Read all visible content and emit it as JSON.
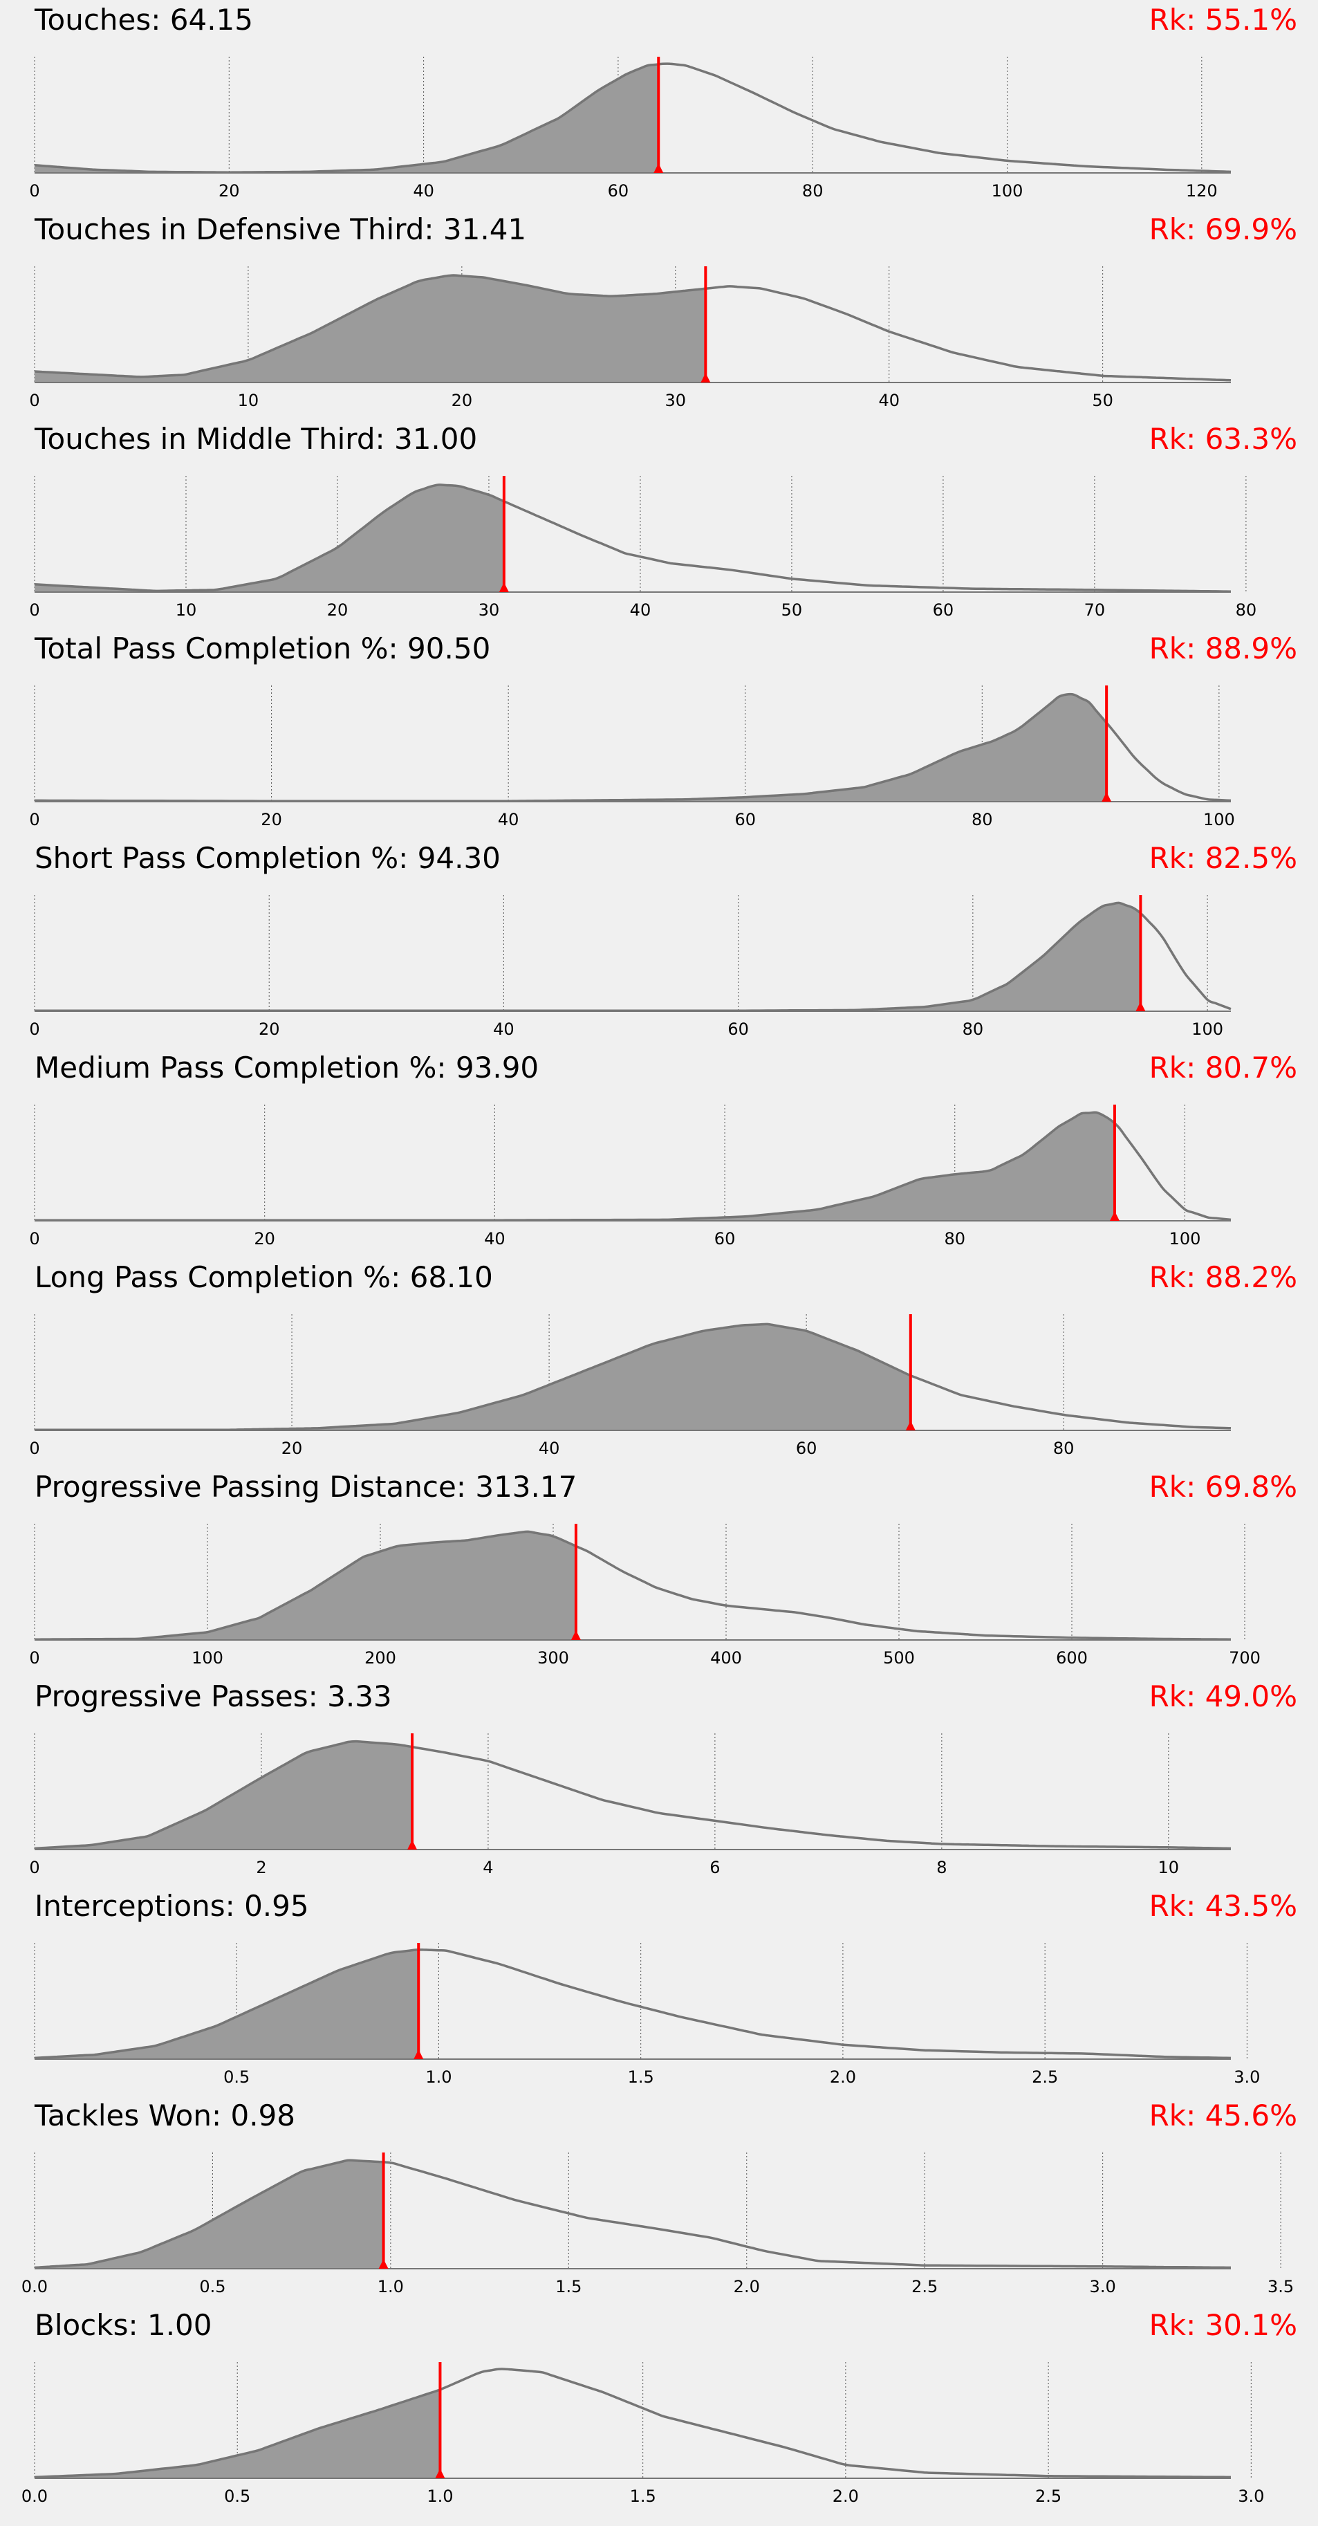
{
  "colors": {
    "background": "#f0f0f0",
    "density_fill": "#9b9b9b",
    "density_line": "#767676",
    "marker": "#ff0000",
    "grid": "#555555"
  },
  "chart_data": [
    {
      "type": "area",
      "title": "Touches: 64.15",
      "rank": "Rk: 55.1%",
      "value": 64.15,
      "percentile": 55.1,
      "xlim": [
        0,
        123
      ],
      "ticks": [
        0,
        20,
        40,
        60,
        80,
        100,
        120
      ],
      "tick_labels": [
        "0",
        "20",
        "40",
        "60",
        "80",
        "100",
        "120"
      ],
      "density": [
        [
          0,
          0.07
        ],
        [
          6,
          0.03
        ],
        [
          12,
          0.01
        ],
        [
          20,
          0.005
        ],
        [
          28,
          0.01
        ],
        [
          35,
          0.03
        ],
        [
          42,
          0.1
        ],
        [
          48,
          0.25
        ],
        [
          54,
          0.5
        ],
        [
          58,
          0.75
        ],
        [
          61,
          0.9
        ],
        [
          63,
          0.97
        ],
        [
          65,
          0.99
        ],
        [
          67,
          0.97
        ],
        [
          70,
          0.88
        ],
        [
          74,
          0.72
        ],
        [
          78,
          0.55
        ],
        [
          82,
          0.4
        ],
        [
          87,
          0.28
        ],
        [
          93,
          0.18
        ],
        [
          100,
          0.11
        ],
        [
          108,
          0.06
        ],
        [
          116,
          0.03
        ],
        [
          123,
          0.01
        ]
      ]
    },
    {
      "type": "area",
      "title": "Touches in Defensive Third: 31.41",
      "rank": "Rk: 69.9%",
      "value": 31.41,
      "percentile": 69.9,
      "xlim": [
        0,
        56
      ],
      "ticks": [
        0,
        10,
        20,
        30,
        40,
        50
      ],
      "tick_labels": [
        "0",
        "10",
        "20",
        "30",
        "40",
        "50"
      ],
      "density": [
        [
          0,
          0.1
        ],
        [
          3,
          0.07
        ],
        [
          5,
          0.05
        ],
        [
          7,
          0.07
        ],
        [
          10,
          0.2
        ],
        [
          13,
          0.45
        ],
        [
          16,
          0.75
        ],
        [
          18,
          0.92
        ],
        [
          19.5,
          0.97
        ],
        [
          21,
          0.95
        ],
        [
          23,
          0.88
        ],
        [
          25,
          0.8
        ],
        [
          27,
          0.78
        ],
        [
          29,
          0.8
        ],
        [
          31,
          0.84
        ],
        [
          32.5,
          0.87
        ],
        [
          34,
          0.85
        ],
        [
          36,
          0.76
        ],
        [
          38,
          0.62
        ],
        [
          40,
          0.46
        ],
        [
          43,
          0.27
        ],
        [
          46,
          0.14
        ],
        [
          50,
          0.06
        ],
        [
          56,
          0.02
        ]
      ]
    },
    {
      "type": "area",
      "title": "Touches in Middle Third: 31.00",
      "rank": "Rk: 63.3%",
      "value": 31.0,
      "percentile": 63.3,
      "xlim": [
        0,
        79
      ],
      "ticks": [
        0,
        10,
        20,
        30,
        40,
        50,
        60,
        70,
        80
      ],
      "tick_labels": [
        "0",
        "10",
        "20",
        "30",
        "40",
        "50",
        "60",
        "70",
        "80"
      ],
      "density": [
        [
          0,
          0.07
        ],
        [
          4,
          0.04
        ],
        [
          8,
          0.01
        ],
        [
          12,
          0.02
        ],
        [
          16,
          0.12
        ],
        [
          20,
          0.4
        ],
        [
          23,
          0.72
        ],
        [
          25,
          0.9
        ],
        [
          26.5,
          0.97
        ],
        [
          28,
          0.96
        ],
        [
          30,
          0.88
        ],
        [
          33,
          0.7
        ],
        [
          36,
          0.52
        ],
        [
          39,
          0.35
        ],
        [
          42,
          0.26
        ],
        [
          46,
          0.2
        ],
        [
          50,
          0.12
        ],
        [
          55,
          0.06
        ],
        [
          62,
          0.03
        ],
        [
          70,
          0.02
        ],
        [
          79,
          0.005
        ]
      ]
    },
    {
      "type": "area",
      "title": "Total Pass Completion %: 90.50",
      "rank": "Rk: 88.9%",
      "value": 90.5,
      "percentile": 88.9,
      "xlim": [
        0,
        101
      ],
      "ticks": [
        0,
        20,
        40,
        60,
        80,
        100
      ],
      "tick_labels": [
        "0",
        "20",
        "40",
        "60",
        "80",
        "100"
      ],
      "density": [
        [
          0,
          0.01
        ],
        [
          20,
          0.005
        ],
        [
          40,
          0.005
        ],
        [
          55,
          0.02
        ],
        [
          60,
          0.04
        ],
        [
          65,
          0.07
        ],
        [
          70,
          0.13
        ],
        [
          74,
          0.25
        ],
        [
          78,
          0.45
        ],
        [
          81,
          0.55
        ],
        [
          83,
          0.65
        ],
        [
          85,
          0.82
        ],
        [
          86.5,
          0.95
        ],
        [
          87.5,
          0.98
        ],
        [
          89,
          0.9
        ],
        [
          91,
          0.65
        ],
        [
          93,
          0.38
        ],
        [
          95,
          0.18
        ],
        [
          97,
          0.07
        ],
        [
          99,
          0.02
        ],
        [
          101,
          0.01
        ]
      ]
    },
    {
      "type": "area",
      "title": "Short Pass Completion %: 94.30",
      "rank": "Rk: 82.5%",
      "value": 94.3,
      "percentile": 82.5,
      "xlim": [
        0,
        102
      ],
      "ticks": [
        0,
        20,
        40,
        60,
        80,
        100
      ],
      "tick_labels": [
        "0",
        "20",
        "40",
        "60",
        "80",
        "100"
      ],
      "density": [
        [
          0,
          0.005
        ],
        [
          40,
          0.005
        ],
        [
          60,
          0.005
        ],
        [
          70,
          0.01
        ],
        [
          76,
          0.04
        ],
        [
          80,
          0.1
        ],
        [
          83,
          0.25
        ],
        [
          86,
          0.5
        ],
        [
          89,
          0.8
        ],
        [
          91,
          0.95
        ],
        [
          92.5,
          0.98
        ],
        [
          94,
          0.92
        ],
        [
          96,
          0.7
        ],
        [
          98,
          0.35
        ],
        [
          100,
          0.1
        ],
        [
          102,
          0.02
        ]
      ]
    },
    {
      "type": "area",
      "title": "Medium Pass Completion %: 93.90",
      "rank": "Rk: 80.7%",
      "value": 93.9,
      "percentile": 80.7,
      "xlim": [
        0,
        104
      ],
      "ticks": [
        0,
        20,
        40,
        60,
        80,
        100
      ],
      "tick_labels": [
        "0",
        "20",
        "40",
        "60",
        "80",
        "100"
      ],
      "density": [
        [
          0,
          0.005
        ],
        [
          40,
          0.005
        ],
        [
          55,
          0.01
        ],
        [
          62,
          0.04
        ],
        [
          68,
          0.1
        ],
        [
          73,
          0.22
        ],
        [
          77,
          0.38
        ],
        [
          80,
          0.42
        ],
        [
          83,
          0.45
        ],
        [
          86,
          0.6
        ],
        [
          89,
          0.85
        ],
        [
          91,
          0.97
        ],
        [
          92.5,
          0.98
        ],
        [
          94,
          0.88
        ],
        [
          96,
          0.6
        ],
        [
          98,
          0.3
        ],
        [
          100,
          0.1
        ],
        [
          102,
          0.03
        ],
        [
          104,
          0.01
        ]
      ]
    },
    {
      "type": "area",
      "title": "Long Pass Completion %: 68.10",
      "rank": "Rk: 88.2%",
      "value": 68.1,
      "percentile": 88.2,
      "xlim": [
        0,
        93
      ],
      "ticks": [
        0,
        20,
        40,
        60,
        80
      ],
      "tick_labels": [
        "0",
        "20",
        "40",
        "60",
        "80"
      ],
      "density": [
        [
          0,
          0.005
        ],
        [
          15,
          0.005
        ],
        [
          22,
          0.02
        ],
        [
          28,
          0.06
        ],
        [
          33,
          0.16
        ],
        [
          38,
          0.32
        ],
        [
          43,
          0.55
        ],
        [
          48,
          0.78
        ],
        [
          52,
          0.9
        ],
        [
          55,
          0.95
        ],
        [
          57,
          0.96
        ],
        [
          60,
          0.9
        ],
        [
          64,
          0.72
        ],
        [
          68,
          0.5
        ],
        [
          72,
          0.32
        ],
        [
          76,
          0.22
        ],
        [
          80,
          0.14
        ],
        [
          85,
          0.07
        ],
        [
          90,
          0.03
        ],
        [
          93,
          0.02
        ]
      ]
    },
    {
      "type": "area",
      "title": "Progressive Passing Distance: 313.17",
      "rank": "Rk: 69.8%",
      "value": 313.17,
      "percentile": 69.8,
      "xlim": [
        0,
        692
      ],
      "ticks": [
        0,
        100,
        200,
        300,
        400,
        500,
        600,
        700
      ],
      "tick_labels": [
        "0",
        "100",
        "200",
        "300",
        "400",
        "500",
        "600",
        "700"
      ],
      "density": [
        [
          0,
          0.005
        ],
        [
          60,
          0.01
        ],
        [
          100,
          0.07
        ],
        [
          130,
          0.2
        ],
        [
          160,
          0.45
        ],
        [
          190,
          0.75
        ],
        [
          210,
          0.85
        ],
        [
          230,
          0.88
        ],
        [
          250,
          0.9
        ],
        [
          270,
          0.95
        ],
        [
          285,
          0.98
        ],
        [
          300,
          0.94
        ],
        [
          320,
          0.8
        ],
        [
          340,
          0.62
        ],
        [
          360,
          0.47
        ],
        [
          380,
          0.37
        ],
        [
          400,
          0.31
        ],
        [
          420,
          0.28
        ],
        [
          440,
          0.25
        ],
        [
          460,
          0.2
        ],
        [
          480,
          0.14
        ],
        [
          510,
          0.08
        ],
        [
          550,
          0.04
        ],
        [
          600,
          0.02
        ],
        [
          650,
          0.01
        ],
        [
          692,
          0.005
        ]
      ]
    },
    {
      "type": "area",
      "title": "Progressive Passes: 3.33",
      "rank": "Rk: 49.0%",
      "value": 3.33,
      "percentile": 49.0,
      "xlim": [
        0,
        10.55
      ],
      "ticks": [
        0,
        2,
        4,
        6,
        8,
        10
      ],
      "tick_labels": [
        "0",
        "2",
        "4",
        "6",
        "8",
        "10"
      ],
      "density": [
        [
          0,
          0.01
        ],
        [
          0.5,
          0.04
        ],
        [
          1,
          0.12
        ],
        [
          1.5,
          0.35
        ],
        [
          2,
          0.65
        ],
        [
          2.4,
          0.88
        ],
        [
          2.8,
          0.98
        ],
        [
          3.2,
          0.95
        ],
        [
          3.6,
          0.88
        ],
        [
          4,
          0.8
        ],
        [
          4.4,
          0.66
        ],
        [
          5,
          0.45
        ],
        [
          5.5,
          0.33
        ],
        [
          6,
          0.26
        ],
        [
          6.5,
          0.19
        ],
        [
          7,
          0.13
        ],
        [
          7.5,
          0.08
        ],
        [
          8,
          0.05
        ],
        [
          9,
          0.03
        ],
        [
          10,
          0.02
        ],
        [
          10.55,
          0.01
        ]
      ]
    },
    {
      "type": "area",
      "title": "Interceptions: 0.95",
      "rank": "Rk: 43.5%",
      "value": 0.95,
      "percentile": 43.5,
      "xlim": [
        0,
        2.96
      ],
      "ticks": [
        0.5,
        1.0,
        1.5,
        2.0,
        2.5,
        3.0
      ],
      "tick_labels": [
        "0.5",
        "1.0",
        "1.5",
        "2.0",
        "2.5",
        "3.0"
      ],
      "density": [
        [
          0,
          0.01
        ],
        [
          0.15,
          0.04
        ],
        [
          0.3,
          0.12
        ],
        [
          0.45,
          0.3
        ],
        [
          0.6,
          0.55
        ],
        [
          0.75,
          0.8
        ],
        [
          0.88,
          0.96
        ],
        [
          0.95,
          0.99
        ],
        [
          1.02,
          0.98
        ],
        [
          1.15,
          0.86
        ],
        [
          1.3,
          0.68
        ],
        [
          1.45,
          0.52
        ],
        [
          1.6,
          0.38
        ],
        [
          1.8,
          0.22
        ],
        [
          2.0,
          0.13
        ],
        [
          2.2,
          0.08
        ],
        [
          2.4,
          0.06
        ],
        [
          2.6,
          0.05
        ],
        [
          2.8,
          0.02
        ],
        [
          2.96,
          0.01
        ]
      ]
    },
    {
      "type": "area",
      "title": "Tackles Won: 0.98",
      "rank": "Rk: 45.6%",
      "value": 0.98,
      "percentile": 45.6,
      "xlim": [
        0,
        3.36
      ],
      "ticks": [
        0.0,
        0.5,
        1.0,
        1.5,
        2.0,
        2.5,
        3.0,
        3.5
      ],
      "tick_labels": [
        "0.0",
        "0.5",
        "1.0",
        "1.5",
        "2.0",
        "2.5",
        "3.0",
        "3.5"
      ],
      "density": [
        [
          0,
          0.01
        ],
        [
          0.15,
          0.04
        ],
        [
          0.3,
          0.15
        ],
        [
          0.45,
          0.35
        ],
        [
          0.6,
          0.62
        ],
        [
          0.75,
          0.88
        ],
        [
          0.88,
          0.98
        ],
        [
          1.0,
          0.96
        ],
        [
          1.15,
          0.82
        ],
        [
          1.35,
          0.62
        ],
        [
          1.55,
          0.46
        ],
        [
          1.75,
          0.36
        ],
        [
          1.9,
          0.28
        ],
        [
          2.05,
          0.16
        ],
        [
          2.2,
          0.07
        ],
        [
          2.5,
          0.03
        ],
        [
          3.0,
          0.02
        ],
        [
          3.36,
          0.01
        ]
      ]
    },
    {
      "type": "area",
      "title": "Blocks: 1.00",
      "rank": "Rk: 30.1%",
      "value": 1.0,
      "percentile": 30.1,
      "xlim": [
        0,
        2.95
      ],
      "ticks": [
        0.0,
        0.5,
        1.0,
        1.5,
        2.0,
        2.5,
        3.0
      ],
      "tick_labels": [
        "0.0",
        "0.5",
        "1.0",
        "1.5",
        "2.0",
        "2.5",
        "3.0"
      ],
      "density": [
        [
          0,
          0.01
        ],
        [
          0.2,
          0.04
        ],
        [
          0.4,
          0.12
        ],
        [
          0.55,
          0.25
        ],
        [
          0.7,
          0.45
        ],
        [
          0.85,
          0.62
        ],
        [
          1.0,
          0.8
        ],
        [
          1.1,
          0.96
        ],
        [
          1.15,
          0.99
        ],
        [
          1.25,
          0.96
        ],
        [
          1.4,
          0.78
        ],
        [
          1.55,
          0.56
        ],
        [
          1.7,
          0.42
        ],
        [
          1.85,
          0.28
        ],
        [
          2.0,
          0.12
        ],
        [
          2.2,
          0.05
        ],
        [
          2.5,
          0.02
        ],
        [
          2.95,
          0.01
        ]
      ]
    }
  ]
}
